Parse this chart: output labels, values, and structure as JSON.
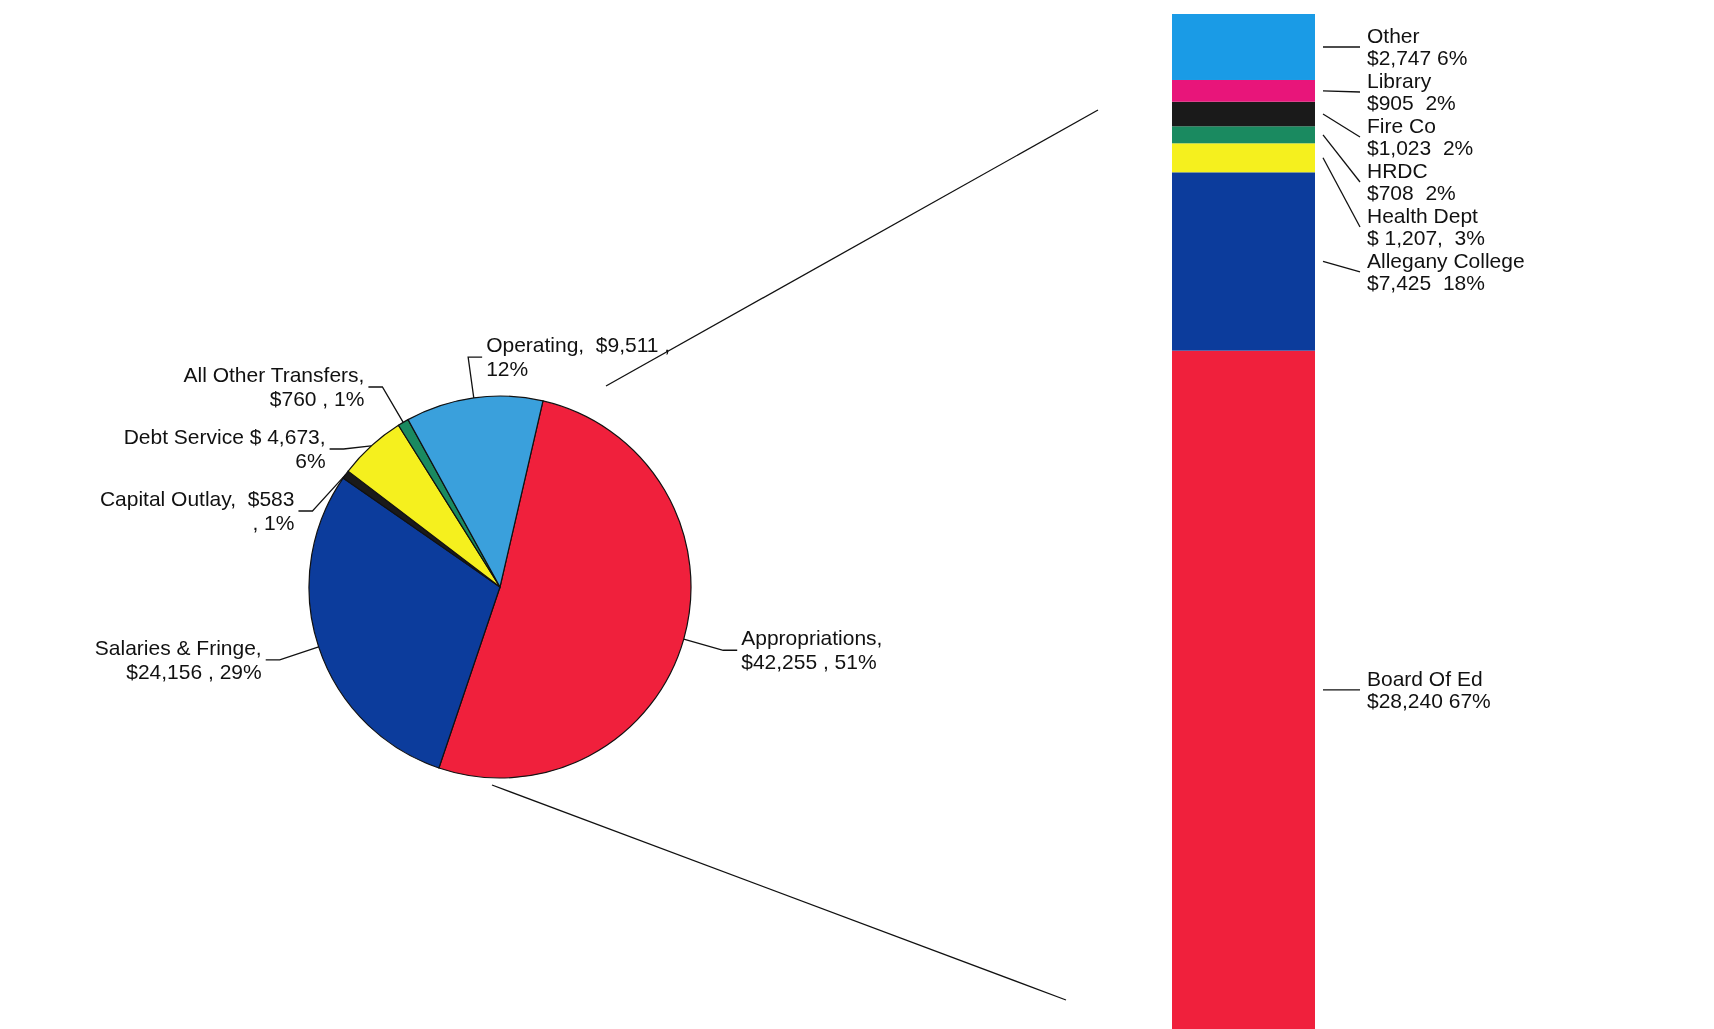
{
  "chart_data": [
    {
      "type": "pie",
      "categories": [
        "Appropriations",
        "Salaries & Fringe",
        "Capital Outlay",
        "Debt Service",
        "All Other Transfers",
        "Operating"
      ],
      "values": [
        42255,
        24156,
        583,
        4673,
        760,
        9511
      ],
      "colors": [
        "#f0203c",
        "#0c3c9c",
        "#1a1a1a",
        "#f5f01e",
        "#1a8a60",
        "#3aa0dc"
      ],
      "value_labels": [
        ",\n$42,255 , 51%",
        ",\n$24,156 , 29%",
        ",  $583\n, 1%",
        " $ 4,673,\n6%",
        ",\n$760 , 1%",
        ",  $9,511 ,\n12%"
      ]
    },
    {
      "type": "bar",
      "stacked": true,
      "categories": [
        null
      ],
      "series": [
        {
          "name": "Board Of Ed",
          "color": "#f0203c",
          "values": [
            28240
          ],
          "value_labels": [
            "\n$28,240 67%"
          ]
        },
        {
          "name": "Allegany College",
          "color": "#0c3c9c",
          "values": [
            7425
          ],
          "value_labels": [
            "\n$7,425  18%"
          ]
        },
        {
          "name": "Health Dept",
          "color": "#f5f01e",
          "values": [
            1207
          ],
          "value_labels": [
            "\n$ 1,207,  3%"
          ]
        },
        {
          "name": "HRDC",
          "color": "#1a8a60",
          "values": [
            708
          ],
          "value_labels": [
            " $708  2%"
          ]
        },
        {
          "name": "Fire Co",
          "color": "#1a1a1a",
          "values": [
            1023
          ],
          "value_labels": [
            " $1,023  2%"
          ]
        },
        {
          "name": "Library",
          "color": "#e8157a",
          "values": [
            905
          ],
          "value_labels": [
            " $905  2%"
          ]
        },
        {
          "name": "Other",
          "color": "#1a9be6",
          "values": [
            2747
          ],
          "value_labels": [
            " $2,747 6%"
          ]
        }
      ]
    }
  ]
}
